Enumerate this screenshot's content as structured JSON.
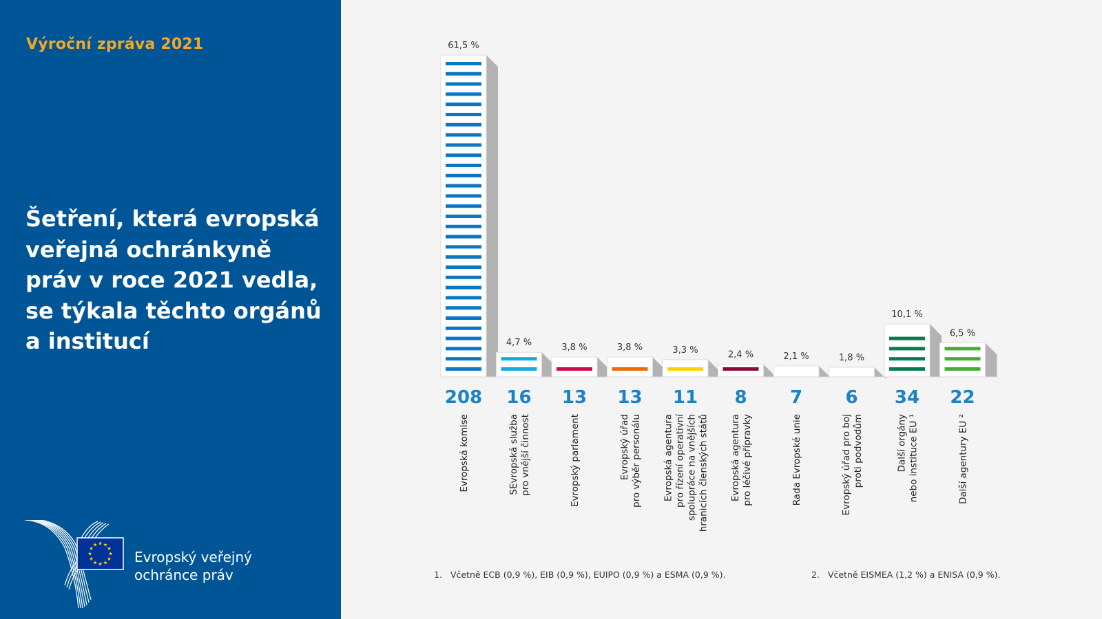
{
  "sidebar": {
    "report_label": "Výroční zpráva 2021",
    "title": "Šetření, která evropská veřejná ochránkyně práv v roce 2021 vedla, se týkala těchto orgánů a institucí",
    "logo": {
      "icon": "european-ombudsman-logo-icon",
      "line1": "Evropský veřejný",
      "line2": "ochránce práv"
    },
    "colors": {
      "background": "#005596",
      "accent": "#f7a823"
    }
  },
  "chart_data": {
    "type": "bar",
    "title": "Šetření, která evropská veřejná ochránkyně práv v roce 2021 vedla, se týkala těchto orgánů a institucí",
    "xlabel": "",
    "ylabel": "",
    "ylim": [
      0,
      61.5
    ],
    "grid": false,
    "legend": "none",
    "value_unit": "%",
    "categories": [
      [
        "Evropská komise"
      ],
      [
        "SEvropská služba",
        "pro vnější činnost"
      ],
      [
        "Evropský parlament"
      ],
      [
        "Evropský úřad",
        "pro výběr personálu"
      ],
      [
        "Evropská agentura",
        "pro řízení operativní",
        "spolupráce na vnějších",
        "hranicích členských států"
      ],
      [
        "Evropská agentura",
        "pro léčivé přípravky"
      ],
      [
        "Rada Evropské unie"
      ],
      [
        "Evropský úřad pro boj",
        "proti podvodům"
      ],
      [
        "Další orgány",
        "nebo instituce EU ¹"
      ],
      [
        "Další agentury EU ²"
      ]
    ],
    "counts": [
      208,
      16,
      13,
      13,
      11,
      8,
      7,
      6,
      34,
      22
    ],
    "values": [
      61.5,
      4.7,
      3.8,
      3.8,
      3.3,
      2.4,
      2.1,
      1.8,
      10.1,
      6.5
    ],
    "value_labels": [
      "61,5 %",
      "4,7 %",
      "3,8 %",
      "3,8 %",
      "3,3 %",
      "2,4 %",
      "2,1 %",
      "1,8 %",
      "10,1 %",
      "6,5 %"
    ],
    "colors": [
      "#0a76c4",
      "#17a9e1",
      "#cd0a4a",
      "#ec6b0a",
      "#fdd200",
      "#890b34",
      "#ec82b2",
      "#0b5596",
      "#047c4c",
      "#47ab36"
    ]
  },
  "footnotes": [
    {
      "num": "1.",
      "text": "Včetně ECB  (0,9 %), EIB (0,9 %), EUIPO (0,9 %) a ESMA (0,9 %)."
    },
    {
      "num": "2.",
      "text": "Včetně EISMEA  (1,2 %) a ENISA (0,9 %)."
    }
  ]
}
